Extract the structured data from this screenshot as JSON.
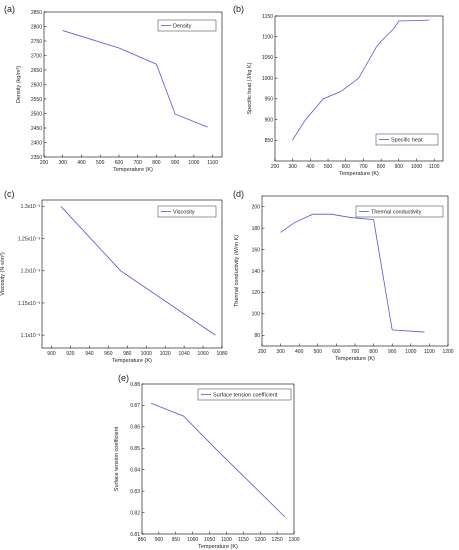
{
  "chart_data": [
    {
      "id": "a",
      "panel_label": "(a)",
      "type": "line",
      "xlabel": "Temperature (K)",
      "ylabel": "Density (kg/m³)",
      "xlim": [
        200,
        1150
      ],
      "ylim": [
        2350,
        2850
      ],
      "xticks": [
        200,
        300,
        400,
        500,
        600,
        700,
        800,
        900,
        1000,
        1100
      ],
      "yticks": [
        2350,
        2400,
        2450,
        2500,
        2550,
        2600,
        2650,
        2700,
        2750,
        2800,
        2850
      ],
      "legend": "top-right",
      "series": [
        {
          "name": "Density",
          "color": "#5555dd",
          "x": [
            300,
            600,
            800,
            900,
            1073
          ],
          "y": [
            2786,
            2726,
            2670,
            2498,
            2453
          ]
        }
      ]
    },
    {
      "id": "b",
      "panel_label": "(b)",
      "type": "line",
      "xlabel": "Temperature (K)",
      "ylabel": "Specific heat (J/kg K)",
      "xlim": [
        200,
        1150
      ],
      "ylim": [
        800,
        1150
      ],
      "xticks": [
        200,
        300,
        400,
        500,
        600,
        700,
        800,
        900,
        1000,
        1100
      ],
      "yticks": [
        850,
        900,
        950,
        1000,
        1050,
        1100,
        1150
      ],
      "legend": "bottom-right",
      "series": [
        {
          "name": "Specific heat",
          "color": "#5555dd",
          "x": [
            298,
            373,
            473,
            573,
            673,
            773,
            800,
            873,
            900,
            1073
          ],
          "y": [
            850,
            900,
            950,
            968,
            1000,
            1075,
            1089,
            1120,
            1138,
            1140
          ]
        }
      ]
    },
    {
      "id": "c",
      "panel_label": "(c)",
      "type": "line",
      "xlabel": "Temperature (K)",
      "ylabel": "Viscosity (N·s/m²)",
      "xlim": [
        890,
        1080
      ],
      "ylim": [
        1.08,
        1.31
      ],
      "xticks": [
        900,
        920,
        940,
        960,
        980,
        1000,
        1020,
        1040,
        1060,
        1080
      ],
      "yticks": [
        1.1,
        1.15,
        1.2,
        1.25,
        1.3
      ],
      "yticklabels": [
        "1.1x10⁻³",
        "1.15x10⁻³",
        "1.2x10⁻³",
        "1.25x10⁻³",
        "1.3x10⁻³"
      ],
      "legend": "top-right",
      "series": [
        {
          "name": "Viscosity",
          "color": "#5555dd",
          "x": [
            910,
            973,
            1073
          ],
          "y": [
            1.3,
            1.2,
            1.1
          ]
        }
      ]
    },
    {
      "id": "d",
      "panel_label": "(d)",
      "type": "line",
      "xlabel": "Temperature (K)",
      "ylabel": "Thermal conductivity (W/m K)",
      "xlim": [
        200,
        1200
      ],
      "ylim": [
        70,
        210
      ],
      "xticks": [
        200,
        300,
        400,
        500,
        600,
        700,
        800,
        900,
        1000,
        1100,
        1200
      ],
      "yticks": [
        80,
        100,
        120,
        140,
        160,
        180,
        200
      ],
      "legend": "top-right",
      "series": [
        {
          "name": "Thermal conductivity",
          "color": "#5555dd",
          "x": [
            300,
            373,
            473,
            573,
            673,
            800,
            900,
            1073
          ],
          "y": [
            176,
            185,
            193,
            193,
            190,
            188,
            85,
            83
          ]
        }
      ]
    },
    {
      "id": "e",
      "panel_label": "(e)",
      "type": "line",
      "xlabel": "Temperature (K)",
      "ylabel": "Surface tension coefficient",
      "xlim": [
        850,
        1300
      ],
      "ylim": [
        0.81,
        0.88
      ],
      "xticks": [
        850,
        900,
        950,
        1000,
        1050,
        1100,
        1150,
        1200,
        1250,
        1300
      ],
      "yticks": [
        0.81,
        0.82,
        0.83,
        0.84,
        0.85,
        0.86,
        0.87,
        0.88
      ],
      "legend": "top-right",
      "series": [
        {
          "name": "Surface tension coefficient",
          "color": "#5555dd",
          "x": [
            877,
            973,
            1073,
            1273
          ],
          "y": [
            0.871,
            0.865,
            0.849,
            0.818
          ]
        }
      ]
    }
  ]
}
